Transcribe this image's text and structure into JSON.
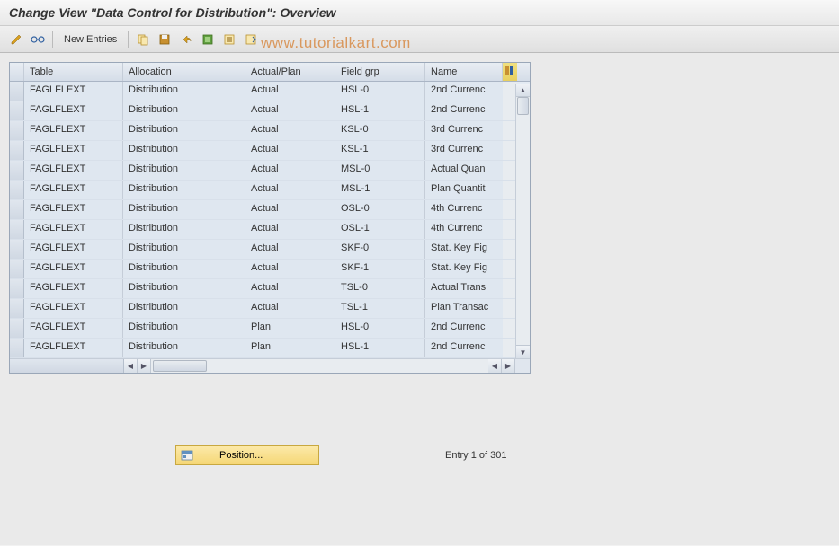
{
  "title": "Change View \"Data Control for Distribution\": Overview",
  "toolbar": {
    "new_entries": "New Entries"
  },
  "watermark": "www.tutorialkart.com",
  "table": {
    "columns": {
      "table": "Table",
      "allocation": "Allocation",
      "actual_plan": "Actual/Plan",
      "field_grp": "Field grp",
      "name": "Name"
    },
    "rows": [
      {
        "table": "FAGLFLEXT",
        "allocation": "Distribution",
        "actual_plan": "Actual",
        "field_grp": "HSL-0",
        "name": "2nd Currenc"
      },
      {
        "table": "FAGLFLEXT",
        "allocation": "Distribution",
        "actual_plan": "Actual",
        "field_grp": "HSL-1",
        "name": "2nd Currenc"
      },
      {
        "table": "FAGLFLEXT",
        "allocation": "Distribution",
        "actual_plan": "Actual",
        "field_grp": "KSL-0",
        "name": "3rd Currenc"
      },
      {
        "table": "FAGLFLEXT",
        "allocation": "Distribution",
        "actual_plan": "Actual",
        "field_grp": "KSL-1",
        "name": "3rd Currenc"
      },
      {
        "table": "FAGLFLEXT",
        "allocation": "Distribution",
        "actual_plan": "Actual",
        "field_grp": "MSL-0",
        "name": "Actual Quan"
      },
      {
        "table": "FAGLFLEXT",
        "allocation": "Distribution",
        "actual_plan": "Actual",
        "field_grp": "MSL-1",
        "name": "Plan Quantit"
      },
      {
        "table": "FAGLFLEXT",
        "allocation": "Distribution",
        "actual_plan": "Actual",
        "field_grp": "OSL-0",
        "name": "4th Currenc"
      },
      {
        "table": "FAGLFLEXT",
        "allocation": "Distribution",
        "actual_plan": "Actual",
        "field_grp": "OSL-1",
        "name": "4th Currenc"
      },
      {
        "table": "FAGLFLEXT",
        "allocation": "Distribution",
        "actual_plan": "Actual",
        "field_grp": "SKF-0",
        "name": "Stat. Key Fig"
      },
      {
        "table": "FAGLFLEXT",
        "allocation": "Distribution",
        "actual_plan": "Actual",
        "field_grp": "SKF-1",
        "name": "Stat. Key Fig"
      },
      {
        "table": "FAGLFLEXT",
        "allocation": "Distribution",
        "actual_plan": "Actual",
        "field_grp": "TSL-0",
        "name": "Actual Trans"
      },
      {
        "table": "FAGLFLEXT",
        "allocation": "Distribution",
        "actual_plan": "Actual",
        "field_grp": "TSL-1",
        "name": "Plan Transac"
      },
      {
        "table": "FAGLFLEXT",
        "allocation": "Distribution",
        "actual_plan": "Plan",
        "field_grp": "HSL-0",
        "name": "2nd Currenc"
      },
      {
        "table": "FAGLFLEXT",
        "allocation": "Distribution",
        "actual_plan": "Plan",
        "field_grp": "HSL-1",
        "name": "2nd Currenc"
      }
    ]
  },
  "footer": {
    "position_label": "Position...",
    "entry_text": "Entry 1 of 301"
  },
  "colors": {
    "header_bg_top": "#e8edf3",
    "header_bg_bottom": "#d5dde8",
    "row_bg": "#dfe7f0",
    "border": "#c5cdd8",
    "watermark": "#d89050",
    "position_btn_top": "#fce9a8",
    "position_btn_bottom": "#f5d776"
  }
}
